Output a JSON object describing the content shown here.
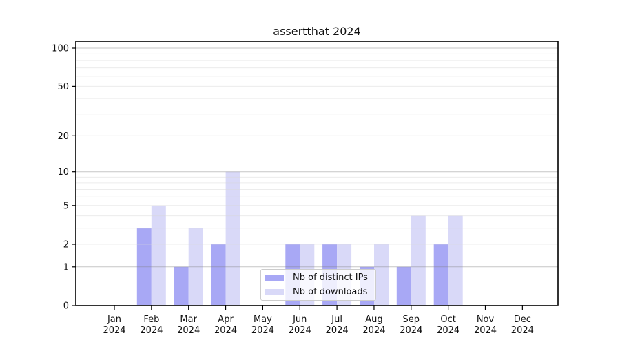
{
  "page": {
    "background": "#ffffff"
  },
  "chart_data": {
    "type": "bar",
    "title": "assertthat 2024",
    "categories": [
      "Jan",
      "Feb",
      "Mar",
      "Apr",
      "May",
      "Jun",
      "Jul",
      "Aug",
      "Sep",
      "Oct",
      "Nov",
      "Dec"
    ],
    "category_year": "2024",
    "series": [
      {
        "name": "Nb of distinct IPs",
        "color": "#a8a8f5",
        "values": [
          0,
          3,
          1,
          2,
          0,
          2,
          2,
          1,
          1,
          2,
          0,
          0
        ]
      },
      {
        "name": "Nb of downloads",
        "color": "#d9d9f8",
        "values": [
          0,
          5,
          3,
          10,
          0,
          2,
          2,
          2,
          4,
          4,
          0,
          0
        ]
      }
    ],
    "y_axis": {
      "scale": "log10(value+1)",
      "tick_values": [
        0,
        1,
        2,
        5,
        10,
        20,
        50,
        100
      ],
      "major_gridlines": [
        1,
        10,
        100
      ],
      "minor_gridlines": [
        2,
        3,
        4,
        5,
        6,
        7,
        8,
        9,
        20,
        30,
        40,
        50,
        60,
        70,
        80,
        90
      ],
      "range": [
        0,
        100
      ]
    },
    "x_axis": {
      "label_line2": "2024"
    },
    "legend": {
      "position": "lower-center-inside"
    },
    "grid": "horizontal",
    "colors": {
      "frame": "#000000",
      "tick_text": "#111111",
      "minor_grid": "#d9d9d9",
      "major_grid": "#808080"
    }
  }
}
